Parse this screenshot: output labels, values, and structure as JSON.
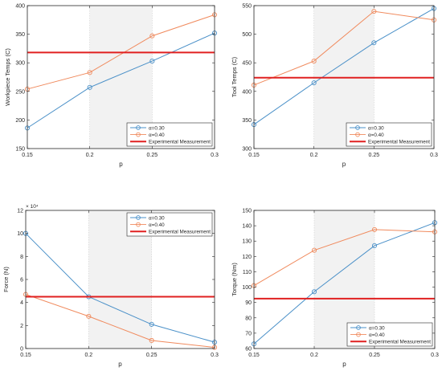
{
  "chart_data": [
    {
      "type": "line",
      "xlabel": "p",
      "ylabel": "Workpiece Temps (C)",
      "x": [
        0.15,
        0.2,
        0.25,
        0.3
      ],
      "xticks": [
        "0.15",
        "0.2",
        "0.25",
        "0.3"
      ],
      "xlim": [
        0.15,
        0.3
      ],
      "ylim": [
        150,
        400
      ],
      "yticks": [
        150,
        200,
        250,
        300,
        350,
        400
      ],
      "ytick_labels": [
        "150",
        "200",
        "250",
        "300",
        "350",
        "400"
      ],
      "y_multiplier": "",
      "shaded_region": [
        0.2,
        0.25
      ],
      "series": [
        {
          "name": "α=0.30",
          "values": [
            186,
            257,
            303,
            352
          ],
          "color": "#4a90c8",
          "marker": "circle"
        },
        {
          "name": "α=0.40",
          "values": [
            254,
            283,
            347,
            384
          ],
          "color": "#f08a5d",
          "marker": "circle"
        },
        {
          "name": "Experimental Measurement",
          "values": [
            318,
            318,
            318,
            318
          ],
          "color": "#e02020",
          "marker": "none"
        }
      ],
      "legend_position": "bottom-right",
      "grid": false
    },
    {
      "type": "line",
      "xlabel": "p",
      "ylabel": "Tool Temps (C)",
      "x": [
        0.15,
        0.2,
        0.25,
        0.3
      ],
      "xticks": [
        "0.15",
        "0.2",
        "0.25",
        "0.3"
      ],
      "xlim": [
        0.15,
        0.3
      ],
      "ylim": [
        300,
        550
      ],
      "yticks": [
        300,
        350,
        400,
        450,
        500,
        550
      ],
      "ytick_labels": [
        "300",
        "350",
        "400",
        "450",
        "500",
        "550"
      ],
      "y_multiplier": "",
      "shaded_region": [
        0.2,
        0.25
      ],
      "series": [
        {
          "name": "α=0.30",
          "values": [
            342,
            415,
            485,
            545
          ],
          "color": "#4a90c8",
          "marker": "circle"
        },
        {
          "name": "α=0.40",
          "values": [
            411,
            453,
            540,
            525
          ],
          "color": "#f08a5d",
          "marker": "circle"
        },
        {
          "name": "Experimental Measurement",
          "values": [
            424,
            424,
            424,
            424
          ],
          "color": "#e02020",
          "marker": "none"
        }
      ],
      "legend_position": "bottom-right",
      "grid": false
    },
    {
      "type": "line",
      "xlabel": "p",
      "ylabel": "Force (N)",
      "x": [
        0.15,
        0.2,
        0.25,
        0.3
      ],
      "xticks": [
        "0.15",
        "0.2",
        "0.25",
        "0.3"
      ],
      "xlim": [
        0.15,
        0.3
      ],
      "ylim": [
        0,
        120000
      ],
      "yticks": [
        0,
        20000,
        40000,
        60000,
        80000,
        100000,
        120000
      ],
      "ytick_labels": [
        "0",
        "2",
        "4",
        "6",
        "8",
        "10",
        "12"
      ],
      "y_multiplier": "× 10⁴",
      "shaded_region": [
        0.2,
        0.25
      ],
      "series": [
        {
          "name": "α=0.30",
          "values": [
            100000,
            45000,
            21000,
            5500
          ],
          "color": "#4a90c8",
          "marker": "circle"
        },
        {
          "name": "α=0.40",
          "values": [
            47000,
            28000,
            7000,
            1000
          ],
          "color": "#f08a5d",
          "marker": "circle"
        },
        {
          "name": "Experimental Measurement",
          "values": [
            45000,
            45000,
            45000,
            45000
          ],
          "color": "#e02020",
          "marker": "none"
        }
      ],
      "legend_position": "top-right",
      "grid": false
    },
    {
      "type": "line",
      "xlabel": "p",
      "ylabel": "Torque (Nm)",
      "x": [
        0.15,
        0.2,
        0.25,
        0.3
      ],
      "xticks": [
        "0.15",
        "0.2",
        "0.25",
        "0.3"
      ],
      "xlim": [
        0.15,
        0.3
      ],
      "ylim": [
        60,
        150
      ],
      "yticks": [
        60,
        70,
        80,
        90,
        100,
        110,
        120,
        130,
        140,
        150
      ],
      "ytick_labels": [
        "60",
        "70",
        "80",
        "90",
        "100",
        "110",
        "120",
        "130",
        "140",
        "150"
      ],
      "y_multiplier": "",
      "shaded_region": [
        0.2,
        0.25
      ],
      "series": [
        {
          "name": "α=0.30",
          "values": [
            63,
            97,
            127,
            142
          ],
          "color": "#4a90c8",
          "marker": "circle"
        },
        {
          "name": "α=0.40",
          "values": [
            101,
            124,
            137.5,
            136
          ],
          "color": "#f08a5d",
          "marker": "circle"
        },
        {
          "name": "Experimental Measurement",
          "values": [
            92.5,
            92.5,
            92.5,
            92.5
          ],
          "color": "#e02020",
          "marker": "none"
        }
      ],
      "legend_position": "bottom-right",
      "grid": false
    }
  ]
}
